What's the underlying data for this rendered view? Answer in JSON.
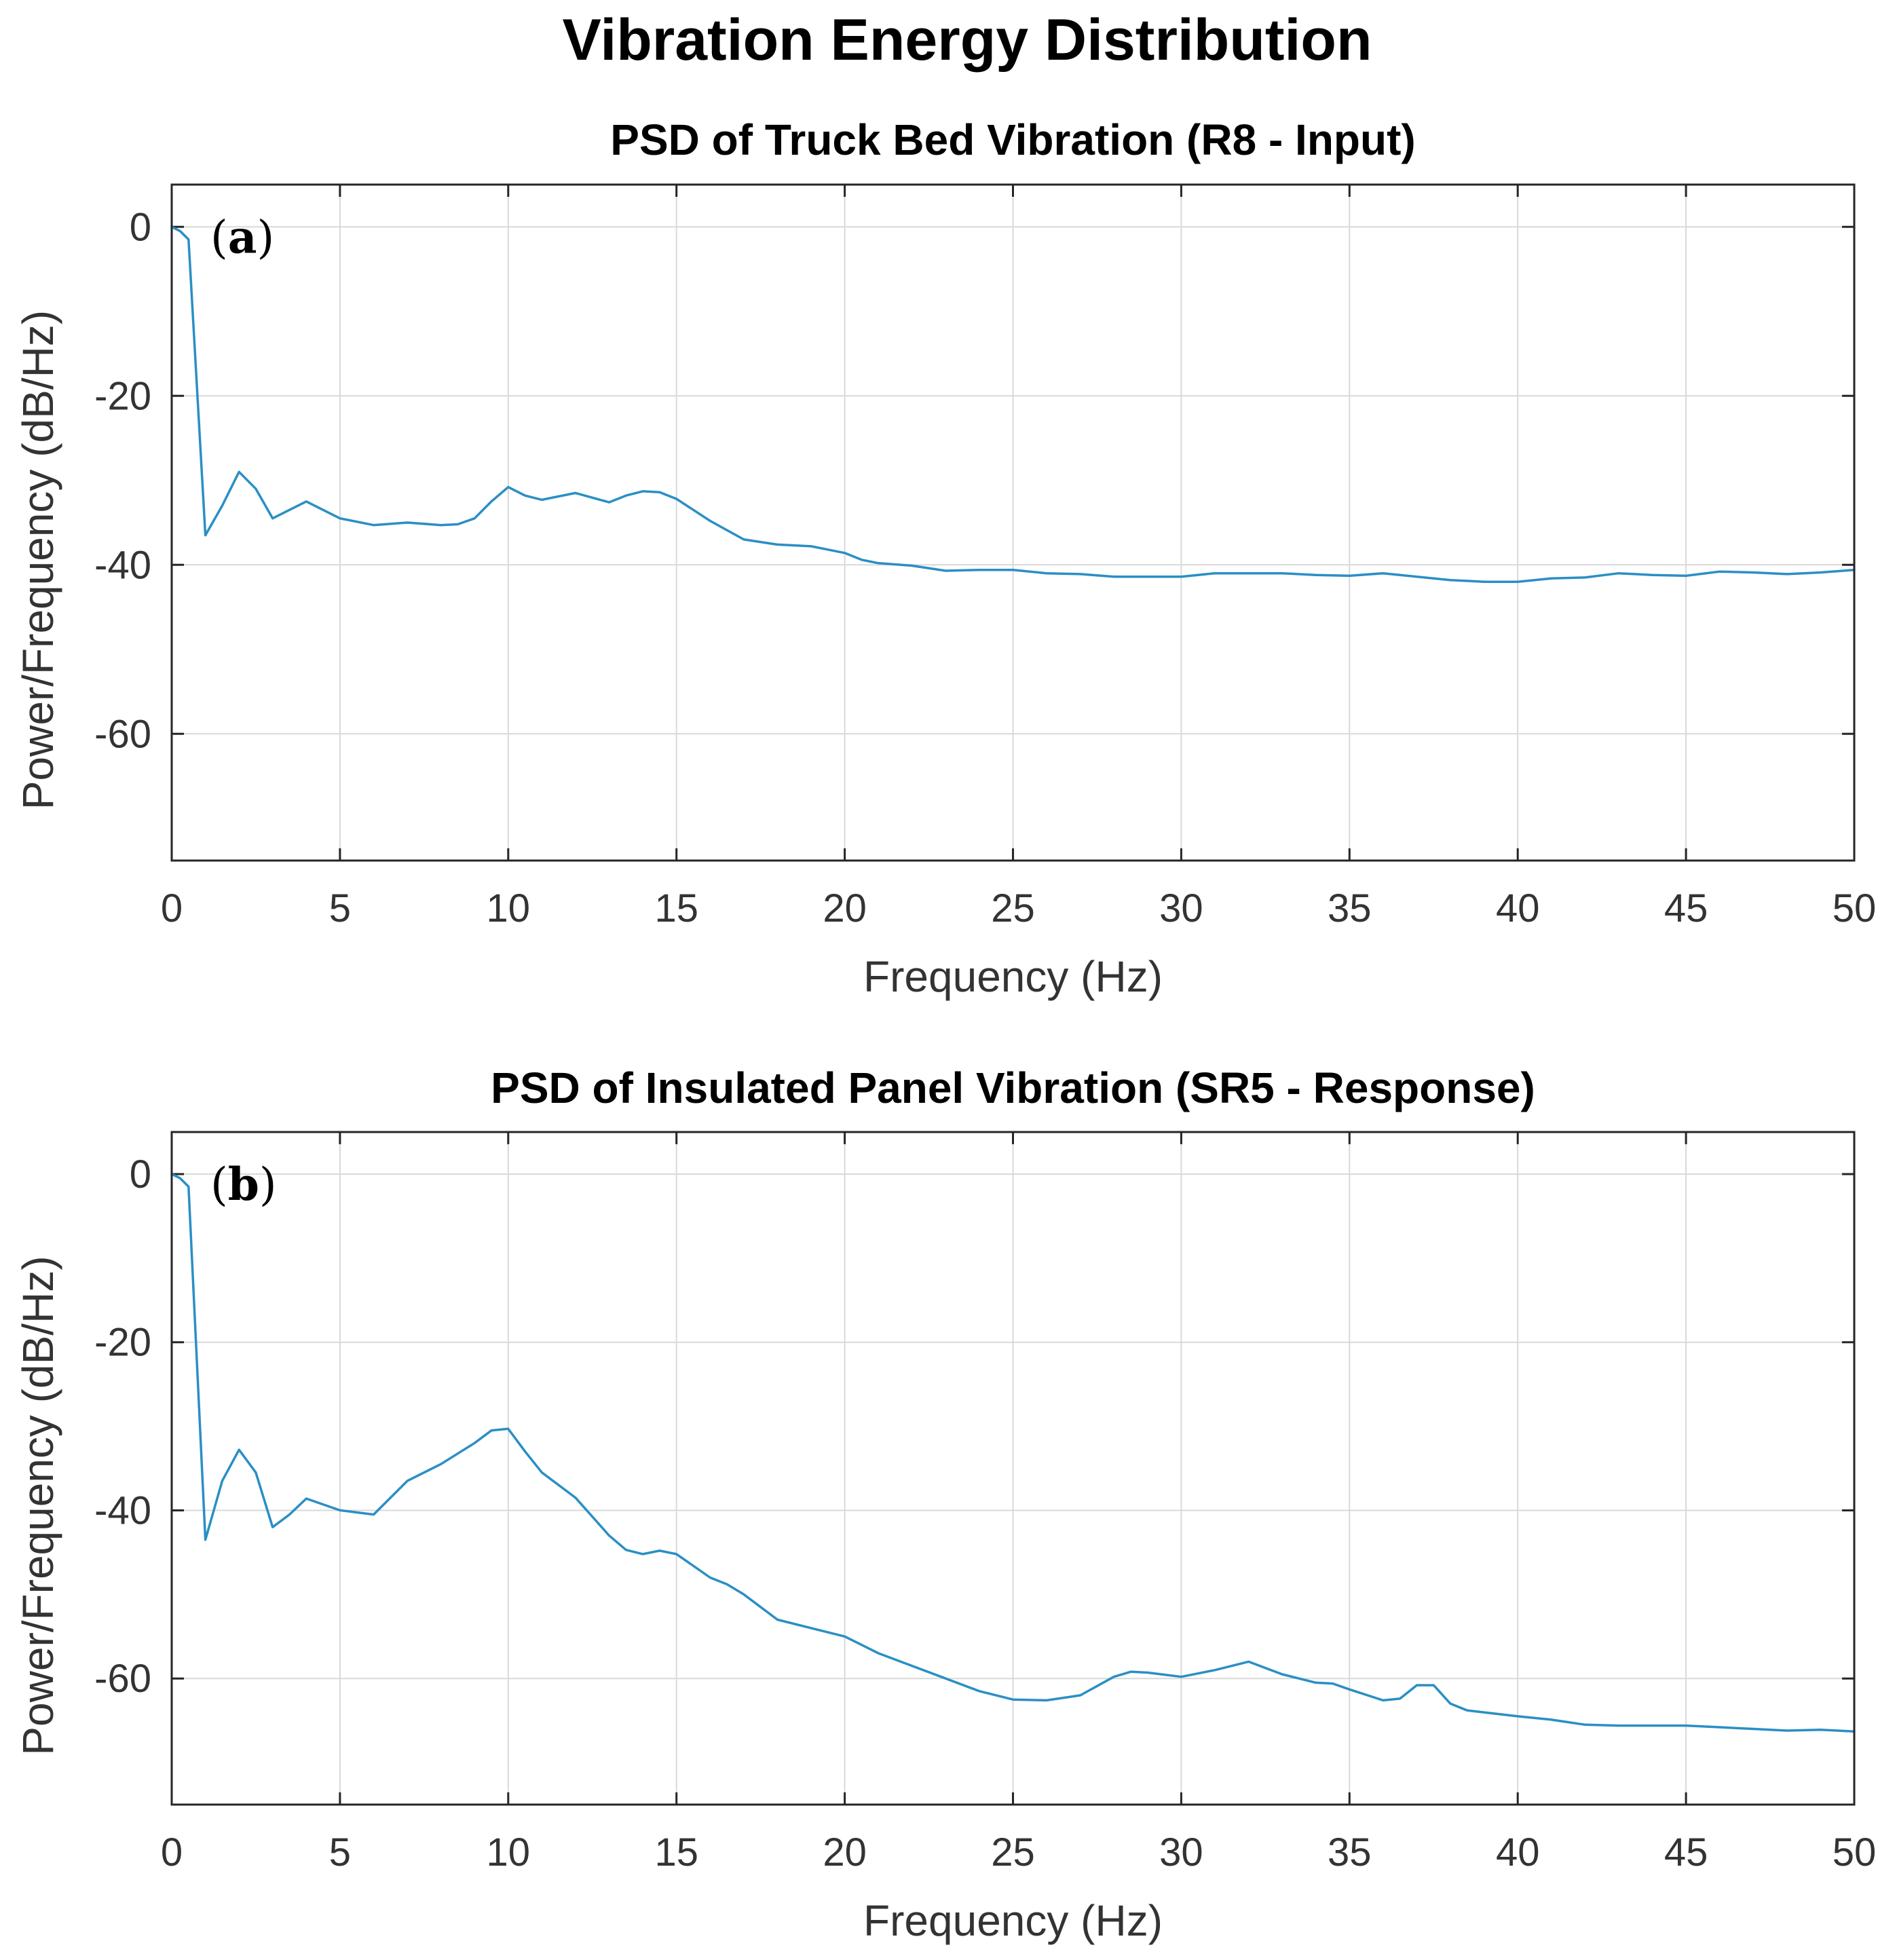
{
  "figure_title": "Vibration Energy Distribution",
  "colors": {
    "line": "#2a8fc4",
    "grid": "#d9d9d9",
    "frame": "#262626"
  },
  "chart_data": [
    {
      "type": "line",
      "panel_label_letter": "a",
      "title": "PSD of Truck Bed Vibration (R8 - Input)",
      "xlabel": "Frequency (Hz)",
      "ylabel": "Power/Frequency (dB/Hz)",
      "xlim": [
        0,
        50
      ],
      "ylim": [
        -75,
        5
      ],
      "xticks": [
        0,
        5,
        10,
        15,
        20,
        25,
        30,
        35,
        40,
        45,
        50
      ],
      "yticks": [
        0,
        -20,
        -40,
        -60
      ],
      "grid": true,
      "series": [
        {
          "name": "R8 - Input",
          "x": [
            0,
            0.25,
            0.5,
            1.0,
            1.5,
            2.0,
            2.5,
            3.0,
            3.5,
            4.0,
            5.0,
            6.0,
            7.0,
            8.0,
            8.5,
            9.0,
            9.5,
            10.0,
            10.5,
            11.0,
            12.0,
            13.0,
            13.5,
            14.0,
            14.5,
            15.0,
            16.0,
            17.0,
            18.0,
            19.0,
            19.5,
            20.0,
            20.5,
            21.0,
            22.0,
            23.0,
            24.0,
            25.0,
            26.0,
            27.0,
            28.0,
            29.0,
            30.0,
            31.0,
            32.0,
            33.0,
            34.0,
            35.0,
            36.0,
            37.0,
            38.0,
            39.0,
            40.0,
            41.0,
            42.0,
            43.0,
            44.0,
            45.0,
            46.0,
            47.0,
            48.0,
            49.0,
            50.0
          ],
          "y": [
            0,
            -0.5,
            -1.5,
            -36.5,
            -33,
            -29,
            -31,
            -34.5,
            -33.5,
            -32.5,
            -34.5,
            -35.3,
            -35,
            -35.3,
            -35.2,
            -34.5,
            -32.5,
            -30.8,
            -31.8,
            -32.3,
            -31.5,
            -32.6,
            -31.8,
            -31.3,
            -31.4,
            -32.2,
            -34.8,
            -37.0,
            -37.6,
            -37.8,
            -38.2,
            -38.6,
            -39.4,
            -39.8,
            -40.1,
            -40.7,
            -40.6,
            -40.6,
            -41.0,
            -41.1,
            -41.4,
            -41.4,
            -41.4,
            -41.0,
            -41.0,
            -41.0,
            -41.2,
            -41.3,
            -41.0,
            -41.4,
            -41.8,
            -42.0,
            -42.0,
            -41.6,
            -41.5,
            -41.0,
            -41.2,
            -41.3,
            -40.8,
            -40.9,
            -41.1,
            -40.9,
            -40.6
          ]
        }
      ]
    },
    {
      "type": "line",
      "panel_label_letter": "b",
      "title": "PSD of Insulated Panel Vibration (SR5 - Response)",
      "xlabel": "Frequency (Hz)",
      "ylabel": "Power/Frequency (dB/Hz)",
      "xlim": [
        0,
        50
      ],
      "ylim": [
        -75,
        5
      ],
      "xticks": [
        0,
        5,
        10,
        15,
        20,
        25,
        30,
        35,
        40,
        45,
        50
      ],
      "yticks": [
        0,
        -20,
        -40,
        -60
      ],
      "grid": true,
      "series": [
        {
          "name": "SR5 - Response",
          "x": [
            0,
            0.25,
            0.5,
            1.0,
            1.5,
            2.0,
            2.5,
            3.0,
            3.5,
            4.0,
            5.0,
            6.0,
            7.0,
            8.0,
            9.0,
            9.5,
            10.0,
            10.5,
            11.0,
            12.0,
            13.0,
            13.5,
            14.0,
            14.5,
            15.0,
            16.0,
            16.5,
            17.0,
            18.0,
            19.0,
            20.0,
            21.0,
            22.0,
            23.0,
            24.0,
            25.0,
            26.0,
            27.0,
            28.0,
            28.5,
            29.0,
            30.0,
            31.0,
            32.0,
            33.0,
            34.0,
            34.5,
            35.0,
            36.0,
            36.5,
            37.0,
            37.5,
            38.0,
            38.5,
            40.0,
            41.0,
            42.0,
            43.0,
            44.0,
            45.0,
            46.0,
            47.0,
            48.0,
            49.0,
            50.0
          ],
          "y": [
            0,
            -0.5,
            -1.5,
            -43.5,
            -36.5,
            -32.8,
            -35.5,
            -42,
            -40.5,
            -38.6,
            -40,
            -40.5,
            -36.5,
            -34.5,
            -32,
            -30.5,
            -30.3,
            -33,
            -35.5,
            -38.5,
            -43,
            -44.7,
            -45.2,
            -44.8,
            -45.2,
            -48,
            -48.8,
            -50,
            -53,
            -54,
            -55,
            -57,
            -58.5,
            -60,
            -61.5,
            -62.5,
            -62.6,
            -62,
            -59.8,
            -59.2,
            -59.3,
            -59.8,
            -59,
            -58,
            -59.5,
            -60.5,
            -60.6,
            -61.3,
            -62.6,
            -62.4,
            -60.8,
            -60.8,
            -63,
            -63.8,
            -64.5,
            -64.9,
            -65.5,
            -65.6,
            -65.6,
            -65.6,
            -65.8,
            -66,
            -66.2,
            -66.1,
            -66.3
          ]
        }
      ]
    }
  ]
}
